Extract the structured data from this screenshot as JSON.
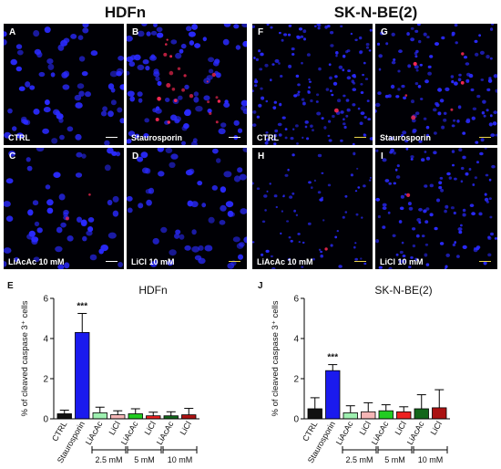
{
  "headers": {
    "left": "HDFn",
    "right": "SK-N-BE(2)"
  },
  "panels": [
    {
      "letter": "A",
      "condition": "CTRL"
    },
    {
      "letter": "B",
      "condition": "Staurosporin"
    },
    {
      "letter": "F",
      "condition": "CTRL"
    },
    {
      "letter": "G",
      "condition": "Staurosporin"
    },
    {
      "letter": "C",
      "condition": "LiAcAc 10 mM"
    },
    {
      "letter": "D",
      "condition": "LiCl 10 mM"
    },
    {
      "letter": "H",
      "condition": "LiAcAc 10 mM"
    },
    {
      "letter": "I",
      "condition": "LiCl 10 mM"
    }
  ],
  "colors": {
    "nuclei": "#2a2aff",
    "caspase": "#ff2a55",
    "background": "#000005"
  },
  "chart_data": [
    {
      "type": "bar",
      "letter": "E",
      "title": "HDFn",
      "ylabel": "% of cleaved caspase 3⁺ cells",
      "ylim": [
        0,
        6
      ],
      "yticks": [
        0,
        2,
        4,
        6
      ],
      "categories": [
        "CTRL",
        "Staurosporin",
        "LiAcAc",
        "LiCl",
        "LiAcAc",
        "LiCl",
        "LiAcAc",
        "LiCl"
      ],
      "values": [
        0.25,
        4.3,
        0.3,
        0.2,
        0.25,
        0.15,
        0.15,
        0.2
      ],
      "errors": [
        0.18,
        0.95,
        0.28,
        0.2,
        0.25,
        0.18,
        0.2,
        0.32
      ],
      "bar_colors": [
        "#111111",
        "#1a1aee",
        "#9ef0b0",
        "#f5b5b5",
        "#22cc22",
        "#ee2222",
        "#11661a",
        "#aa1111"
      ],
      "significance": [
        {
          "index": 1,
          "label": "***"
        }
      ],
      "groups": [
        {
          "label": "2.5 mM",
          "from": 2,
          "to": 3
        },
        {
          "label": "5 mM",
          "from": 4,
          "to": 5
        },
        {
          "label": "10 mM",
          "from": 6,
          "to": 7
        }
      ]
    },
    {
      "type": "bar",
      "letter": "J",
      "title": "SK-N-BE(2)",
      "ylabel": "% of cleaved caspase 3⁺ cells",
      "ylim": [
        0,
        6
      ],
      "yticks": [
        0,
        2,
        4,
        6
      ],
      "categories": [
        "CTRL",
        "Staurosporin",
        "LiAcAc",
        "LiCl",
        "LiAcAc",
        "LiCl",
        "LiAcAc",
        "LiCl"
      ],
      "values": [
        0.5,
        2.4,
        0.3,
        0.35,
        0.4,
        0.35,
        0.5,
        0.55
      ],
      "errors": [
        0.55,
        0.3,
        0.35,
        0.45,
        0.3,
        0.25,
        0.7,
        0.9
      ],
      "bar_colors": [
        "#111111",
        "#1a1aee",
        "#9ef0b0",
        "#f5b5b5",
        "#22cc22",
        "#ee2222",
        "#11661a",
        "#aa1111"
      ],
      "significance": [
        {
          "index": 1,
          "label": "***"
        }
      ],
      "groups": [
        {
          "label": "2.5 mM",
          "from": 2,
          "to": 3
        },
        {
          "label": "5 mM",
          "from": 4,
          "to": 5
        },
        {
          "label": "10 mM",
          "from": 6,
          "to": 7
        }
      ]
    }
  ]
}
